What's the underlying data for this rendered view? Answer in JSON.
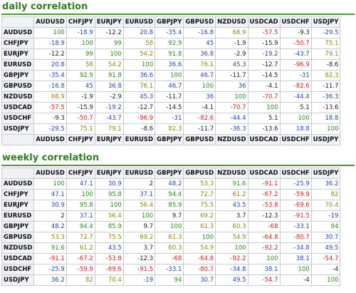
{
  "colors": {
    "green": "#2e8b1f",
    "blue": "#2348b5",
    "red": "#d02020",
    "olive": "#8a8a10",
    "dark": "#222222",
    "title": "#2e7d1f"
  },
  "pairs": [
    "AUDUSD",
    "CHFJPY",
    "EURJPY",
    "EURUSD",
    "GBPJPY",
    "GBPUSD",
    "NZDUSD",
    "USDCAD",
    "USDCHF",
    "USDJPY"
  ],
  "sections": [
    {
      "title": "daily correlation",
      "show_footer": true,
      "rows": [
        {
          "label": "AUDUSD",
          "cells": [
            {
              "v": "100",
              "c": "green"
            },
            {
              "v": "-18.9",
              "c": "blue"
            },
            {
              "v": "-12.2",
              "c": "dark"
            },
            {
              "v": "20.8",
              "c": "blue"
            },
            {
              "v": "-35.4",
              "c": "blue"
            },
            {
              "v": "-16.8",
              "c": "blue"
            },
            {
              "v": "68.9",
              "c": "olive"
            },
            {
              "v": "-57.5",
              "c": "red"
            },
            {
              "v": "-9.3",
              "c": "dark"
            },
            {
              "v": "-29.5",
              "c": "blue"
            }
          ]
        },
        {
          "label": "CHFJPY",
          "cells": [
            {
              "v": "-18.9",
              "c": "blue"
            },
            {
              "v": "100",
              "c": "green"
            },
            {
              "v": "99",
              "c": "green"
            },
            {
              "v": "58",
              "c": "olive"
            },
            {
              "v": "92.9",
              "c": "green"
            },
            {
              "v": "45",
              "c": "blue"
            },
            {
              "v": "-1.9",
              "c": "dark"
            },
            {
              "v": "-15.9",
              "c": "dark"
            },
            {
              "v": "-50.7",
              "c": "red"
            },
            {
              "v": "75.1",
              "c": "olive"
            }
          ]
        },
        {
          "label": "EURJPY",
          "cells": [
            {
              "v": "-12.2",
              "c": "dark"
            },
            {
              "v": "99",
              "c": "green"
            },
            {
              "v": "100",
              "c": "green"
            },
            {
              "v": "54.2",
              "c": "olive"
            },
            {
              "v": "91.8",
              "c": "green"
            },
            {
              "v": "36.8",
              "c": "blue"
            },
            {
              "v": "-2.9",
              "c": "dark"
            },
            {
              "v": "-19.2",
              "c": "blue"
            },
            {
              "v": "-43.7",
              "c": "blue"
            },
            {
              "v": "79.1",
              "c": "olive"
            }
          ]
        },
        {
          "label": "EURUSD",
          "cells": [
            {
              "v": "20.8",
              "c": "blue"
            },
            {
              "v": "58",
              "c": "olive"
            },
            {
              "v": "54.2",
              "c": "olive"
            },
            {
              "v": "100",
              "c": "green"
            },
            {
              "v": "36.6",
              "c": "blue"
            },
            {
              "v": "76.1",
              "c": "olive"
            },
            {
              "v": "45.3",
              "c": "blue"
            },
            {
              "v": "-12.7",
              "c": "dark"
            },
            {
              "v": "-96.9",
              "c": "red"
            },
            {
              "v": "-8.6",
              "c": "dark"
            }
          ]
        },
        {
          "label": "GBPJPY",
          "cells": [
            {
              "v": "-35.4",
              "c": "blue"
            },
            {
              "v": "92.9",
              "c": "green"
            },
            {
              "v": "91.8",
              "c": "green"
            },
            {
              "v": "36.6",
              "c": "blue"
            },
            {
              "v": "100",
              "c": "green"
            },
            {
              "v": "46.7",
              "c": "blue"
            },
            {
              "v": "-11.7",
              "c": "dark"
            },
            {
              "v": "-14.5",
              "c": "dark"
            },
            {
              "v": "-31",
              "c": "blue"
            },
            {
              "v": "82.3",
              "c": "olive"
            }
          ]
        },
        {
          "label": "GBPUSD",
          "cells": [
            {
              "v": "-16.8",
              "c": "blue"
            },
            {
              "v": "45",
              "c": "blue"
            },
            {
              "v": "36.8",
              "c": "blue"
            },
            {
              "v": "76.1",
              "c": "olive"
            },
            {
              "v": "46.7",
              "c": "blue"
            },
            {
              "v": "100",
              "c": "green"
            },
            {
              "v": "36",
              "c": "blue"
            },
            {
              "v": "-4.1",
              "c": "dark"
            },
            {
              "v": "-82.6",
              "c": "red"
            },
            {
              "v": "-11.7",
              "c": "dark"
            }
          ]
        },
        {
          "label": "NZDUSD",
          "cells": [
            {
              "v": "68.9",
              "c": "olive"
            },
            {
              "v": "-1.9",
              "c": "dark"
            },
            {
              "v": "-2.9",
              "c": "dark"
            },
            {
              "v": "45.3",
              "c": "blue"
            },
            {
              "v": "-11.7",
              "c": "dark"
            },
            {
              "v": "36",
              "c": "blue"
            },
            {
              "v": "100",
              "c": "green"
            },
            {
              "v": "-70.7",
              "c": "red"
            },
            {
              "v": "-44.4",
              "c": "blue"
            },
            {
              "v": "-36.3",
              "c": "blue"
            }
          ]
        },
        {
          "label": "USDCAD",
          "cells": [
            {
              "v": "-57.5",
              "c": "red"
            },
            {
              "v": "-15.9",
              "c": "dark"
            },
            {
              "v": "-19.2",
              "c": "blue"
            },
            {
              "v": "-12.7",
              "c": "dark"
            },
            {
              "v": "-14.5",
              "c": "dark"
            },
            {
              "v": "-4.1",
              "c": "dark"
            },
            {
              "v": "-70.7",
              "c": "red"
            },
            {
              "v": "100",
              "c": "green"
            },
            {
              "v": "5.1",
              "c": "dark"
            },
            {
              "v": "-13.6",
              "c": "dark"
            }
          ]
        },
        {
          "label": "USDCHF",
          "cells": [
            {
              "v": "-9.3",
              "c": "dark"
            },
            {
              "v": "-50.7",
              "c": "red"
            },
            {
              "v": "-43.7",
              "c": "blue"
            },
            {
              "v": "-96.9",
              "c": "red"
            },
            {
              "v": "-31",
              "c": "blue"
            },
            {
              "v": "-82.6",
              "c": "red"
            },
            {
              "v": "-44.4",
              "c": "blue"
            },
            {
              "v": "5.1",
              "c": "dark"
            },
            {
              "v": "100",
              "c": "green"
            },
            {
              "v": "18.8",
              "c": "blue"
            }
          ]
        },
        {
          "label": "USDJPY",
          "cells": [
            {
              "v": "-29.5",
              "c": "blue"
            },
            {
              "v": "75.1",
              "c": "olive"
            },
            {
              "v": "79.1",
              "c": "olive"
            },
            {
              "v": "-8.6",
              "c": "dark"
            },
            {
              "v": "82.3",
              "c": "olive"
            },
            {
              "v": "-11.7",
              "c": "dark"
            },
            {
              "v": "-36.3",
              "c": "blue"
            },
            {
              "v": "-13.6",
              "c": "dark"
            },
            {
              "v": "18.8",
              "c": "blue"
            },
            {
              "v": "100",
              "c": "green"
            }
          ]
        }
      ]
    },
    {
      "title": "weekly correlation",
      "show_footer": false,
      "rows": [
        {
          "label": "AUDUSD",
          "cells": [
            {
              "v": "100",
              "c": "green"
            },
            {
              "v": "47.1",
              "c": "blue"
            },
            {
              "v": "30.9",
              "c": "blue"
            },
            {
              "v": "2",
              "c": "dark"
            },
            {
              "v": "48.2",
              "c": "blue"
            },
            {
              "v": "53.3",
              "c": "olive"
            },
            {
              "v": "91.6",
              "c": "green"
            },
            {
              "v": "-91.1",
              "c": "red"
            },
            {
              "v": "-25.9",
              "c": "blue"
            },
            {
              "v": "36.2",
              "c": "blue"
            }
          ]
        },
        {
          "label": "CHFJPY",
          "cells": [
            {
              "v": "47.1",
              "c": "blue"
            },
            {
              "v": "100",
              "c": "green"
            },
            {
              "v": "95.8",
              "c": "green"
            },
            {
              "v": "37.1",
              "c": "blue"
            },
            {
              "v": "94.4",
              "c": "green"
            },
            {
              "v": "72.7",
              "c": "olive"
            },
            {
              "v": "61.2",
              "c": "olive"
            },
            {
              "v": "-67.2",
              "c": "red"
            },
            {
              "v": "-59.9",
              "c": "red"
            },
            {
              "v": "82",
              "c": "olive"
            }
          ]
        },
        {
          "label": "EURJPY",
          "cells": [
            {
              "v": "30.9",
              "c": "blue"
            },
            {
              "v": "95.8",
              "c": "green"
            },
            {
              "v": "100",
              "c": "green"
            },
            {
              "v": "56.4",
              "c": "olive"
            },
            {
              "v": "85.9",
              "c": "green"
            },
            {
              "v": "75.5",
              "c": "olive"
            },
            {
              "v": "43.5",
              "c": "blue"
            },
            {
              "v": "-53.8",
              "c": "red"
            },
            {
              "v": "-69.6",
              "c": "red"
            },
            {
              "v": "70.4",
              "c": "olive"
            }
          ]
        },
        {
          "label": "EURUSD",
          "cells": [
            {
              "v": "2",
              "c": "dark"
            },
            {
              "v": "37.1",
              "c": "blue"
            },
            {
              "v": "56.4",
              "c": "olive"
            },
            {
              "v": "100",
              "c": "green"
            },
            {
              "v": "9.7",
              "c": "dark"
            },
            {
              "v": "69.2",
              "c": "olive"
            },
            {
              "v": "3.7",
              "c": "dark"
            },
            {
              "v": "-12.3",
              "c": "dark"
            },
            {
              "v": "-91.5",
              "c": "red"
            },
            {
              "v": "-19",
              "c": "blue"
            }
          ]
        },
        {
          "label": "GBPJPY",
          "cells": [
            {
              "v": "48.2",
              "c": "blue"
            },
            {
              "v": "94.4",
              "c": "green"
            },
            {
              "v": "85.9",
              "c": "green"
            },
            {
              "v": "9.7",
              "c": "dark"
            },
            {
              "v": "100",
              "c": "green"
            },
            {
              "v": "61.3",
              "c": "olive"
            },
            {
              "v": "60.3",
              "c": "olive"
            },
            {
              "v": "-68",
              "c": "red"
            },
            {
              "v": "-33.1",
              "c": "blue"
            },
            {
              "v": "94",
              "c": "green"
            }
          ]
        },
        {
          "label": "GBPUSD",
          "cells": [
            {
              "v": "53.3",
              "c": "olive"
            },
            {
              "v": "72.7",
              "c": "olive"
            },
            {
              "v": "75.5",
              "c": "olive"
            },
            {
              "v": "69.2",
              "c": "olive"
            },
            {
              "v": "61.3",
              "c": "olive"
            },
            {
              "v": "100",
              "c": "green"
            },
            {
              "v": "54.9",
              "c": "olive"
            },
            {
              "v": "-64.8",
              "c": "red"
            },
            {
              "v": "-80.7",
              "c": "red"
            },
            {
              "v": "30.7",
              "c": "blue"
            }
          ]
        },
        {
          "label": "NZDUSD",
          "cells": [
            {
              "v": "91.6",
              "c": "green"
            },
            {
              "v": "61.2",
              "c": "olive"
            },
            {
              "v": "43.5",
              "c": "blue"
            },
            {
              "v": "3.7",
              "c": "dark"
            },
            {
              "v": "60.3",
              "c": "olive"
            },
            {
              "v": "54.9",
              "c": "olive"
            },
            {
              "v": "100",
              "c": "green"
            },
            {
              "v": "-92.2",
              "c": "red"
            },
            {
              "v": "-34.8",
              "c": "blue"
            },
            {
              "v": "49.5",
              "c": "blue"
            }
          ]
        },
        {
          "label": "USDCAD",
          "cells": [
            {
              "v": "-91.1",
              "c": "red"
            },
            {
              "v": "-67.2",
              "c": "red"
            },
            {
              "v": "-53.8",
              "c": "red"
            },
            {
              "v": "-12.3",
              "c": "dark"
            },
            {
              "v": "-68",
              "c": "red"
            },
            {
              "v": "-64.8",
              "c": "red"
            },
            {
              "v": "-92.2",
              "c": "red"
            },
            {
              "v": "100",
              "c": "green"
            },
            {
              "v": "38.1",
              "c": "blue"
            },
            {
              "v": "-54.7",
              "c": "red"
            }
          ]
        },
        {
          "label": "USDCHF",
          "cells": [
            {
              "v": "-25.9",
              "c": "blue"
            },
            {
              "v": "-59.9",
              "c": "red"
            },
            {
              "v": "-69.6",
              "c": "red"
            },
            {
              "v": "-91.5",
              "c": "red"
            },
            {
              "v": "-33.1",
              "c": "blue"
            },
            {
              "v": "-80.7",
              "c": "red"
            },
            {
              "v": "-34.8",
              "c": "blue"
            },
            {
              "v": "38.1",
              "c": "blue"
            },
            {
              "v": "100",
              "c": "green"
            },
            {
              "v": "-4",
              "c": "dark"
            }
          ]
        },
        {
          "label": "USDJPY",
          "cells": [
            {
              "v": "36.2",
              "c": "blue"
            },
            {
              "v": "82",
              "c": "olive"
            },
            {
              "v": "70.4",
              "c": "olive"
            },
            {
              "v": "-19",
              "c": "blue"
            },
            {
              "v": "94",
              "c": "green"
            },
            {
              "v": "30.7",
              "c": "blue"
            },
            {
              "v": "49.5",
              "c": "blue"
            },
            {
              "v": "-54.7",
              "c": "red"
            },
            {
              "v": "-4",
              "c": "dark"
            },
            {
              "v": "100",
              "c": "green"
            }
          ]
        }
      ]
    }
  ]
}
